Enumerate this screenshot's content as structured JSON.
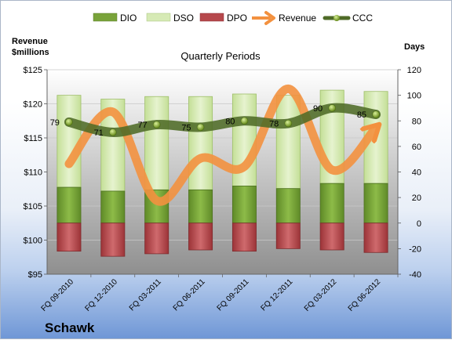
{
  "chart_data": {
    "type": "bar",
    "title": "Quarterly Periods",
    "company": "Schawk",
    "left_axis_label_line1": "Revenue",
    "left_axis_label_line2": "$millions",
    "right_axis_label": "Days",
    "categories": [
      "FQ 09-2010",
      "FQ 12-2010",
      "FQ 03-2011",
      "FQ 06-2011",
      "FQ 09-2011",
      "FQ 12-2011",
      "FQ 03-2012",
      "FQ 06-2012"
    ],
    "left_ylim": [
      95,
      125
    ],
    "left_ticks": [
      "$95",
      "$100",
      "$105",
      "$110",
      "$115",
      "$120",
      "$125"
    ],
    "right_ylim": [
      -40,
      120
    ],
    "right_ticks": [
      "-40",
      "-20",
      "0",
      "20",
      "40",
      "60",
      "80",
      "100",
      "120"
    ],
    "legend_position": "top",
    "series": [
      {
        "name": "DIO",
        "axis": "right",
        "kind": "bar",
        "values": [
          28,
          25,
          26,
          26,
          29,
          27,
          31,
          31
        ]
      },
      {
        "name": "DSO",
        "axis": "right",
        "kind": "bar",
        "values": [
          72,
          72,
          73,
          73,
          72,
          73,
          73,
          72
        ]
      },
      {
        "name": "DPO",
        "axis": "right",
        "kind": "bar",
        "values": [
          -22,
          -26,
          -24,
          -21,
          -22,
          -20,
          -21,
          -23
        ]
      },
      {
        "name": "Revenue",
        "axis": "left",
        "kind": "line",
        "values": [
          111.2,
          118.8,
          105.8,
          112.0,
          110.8,
          122.2,
          110.3,
          116.5
        ]
      },
      {
        "name": "CCC",
        "axis": "right",
        "kind": "line",
        "values": [
          79,
          71,
          77,
          75,
          80,
          78,
          90,
          85
        ],
        "labels": [
          "79",
          "71",
          "77",
          "75",
          "80",
          "78",
          "90",
          "85"
        ]
      }
    ],
    "colors": {
      "DIO": "#79a33a",
      "DSO": "#d6eab5",
      "DPO": "#b6484c",
      "Revenue": "#f3913f",
      "CCC": "#4f6b27"
    }
  }
}
